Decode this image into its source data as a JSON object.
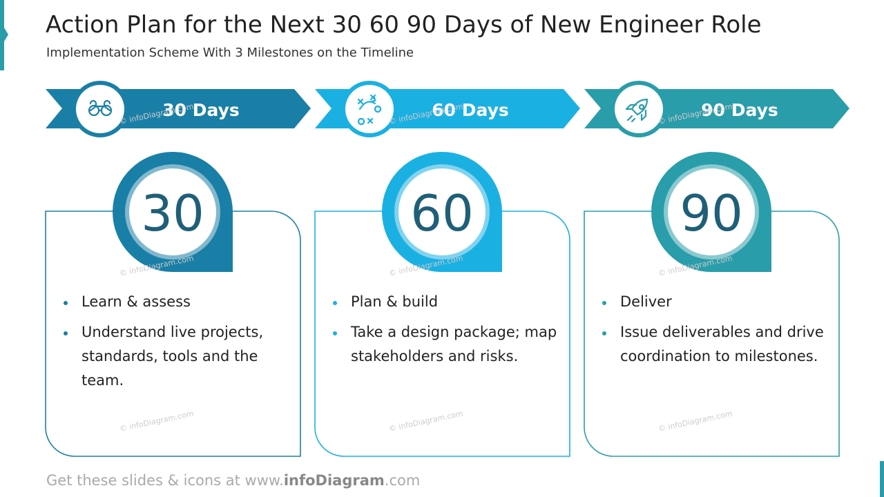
{
  "title": "Action Plan for the Next 30 60 90 Days of New Engineer Role",
  "subtitle": "Implementation Scheme With 3 Milestones on the Timeline",
  "watermark": "© infoDiagram.com",
  "phases": [
    {
      "label": "30 Days",
      "number": "30",
      "color": "#1a7fa6",
      "bullets": [
        "Learn & assess",
        "Understand live projects, standards, tools and the team."
      ]
    },
    {
      "label": "60 Days",
      "number": "60",
      "color": "#1bb0e2",
      "bullets": [
        "Plan & build",
        "Take a design package; map stakeholders and risks."
      ]
    },
    {
      "label": "90 Days",
      "number": "90",
      "color": "#2a9daa",
      "bullets": [
        "Deliver",
        "Issue deliverables and drive coordination to milestones."
      ]
    }
  ],
  "footer": [
    "Get these slides & icons at www.",
    "infoDiagram",
    ".com"
  ]
}
